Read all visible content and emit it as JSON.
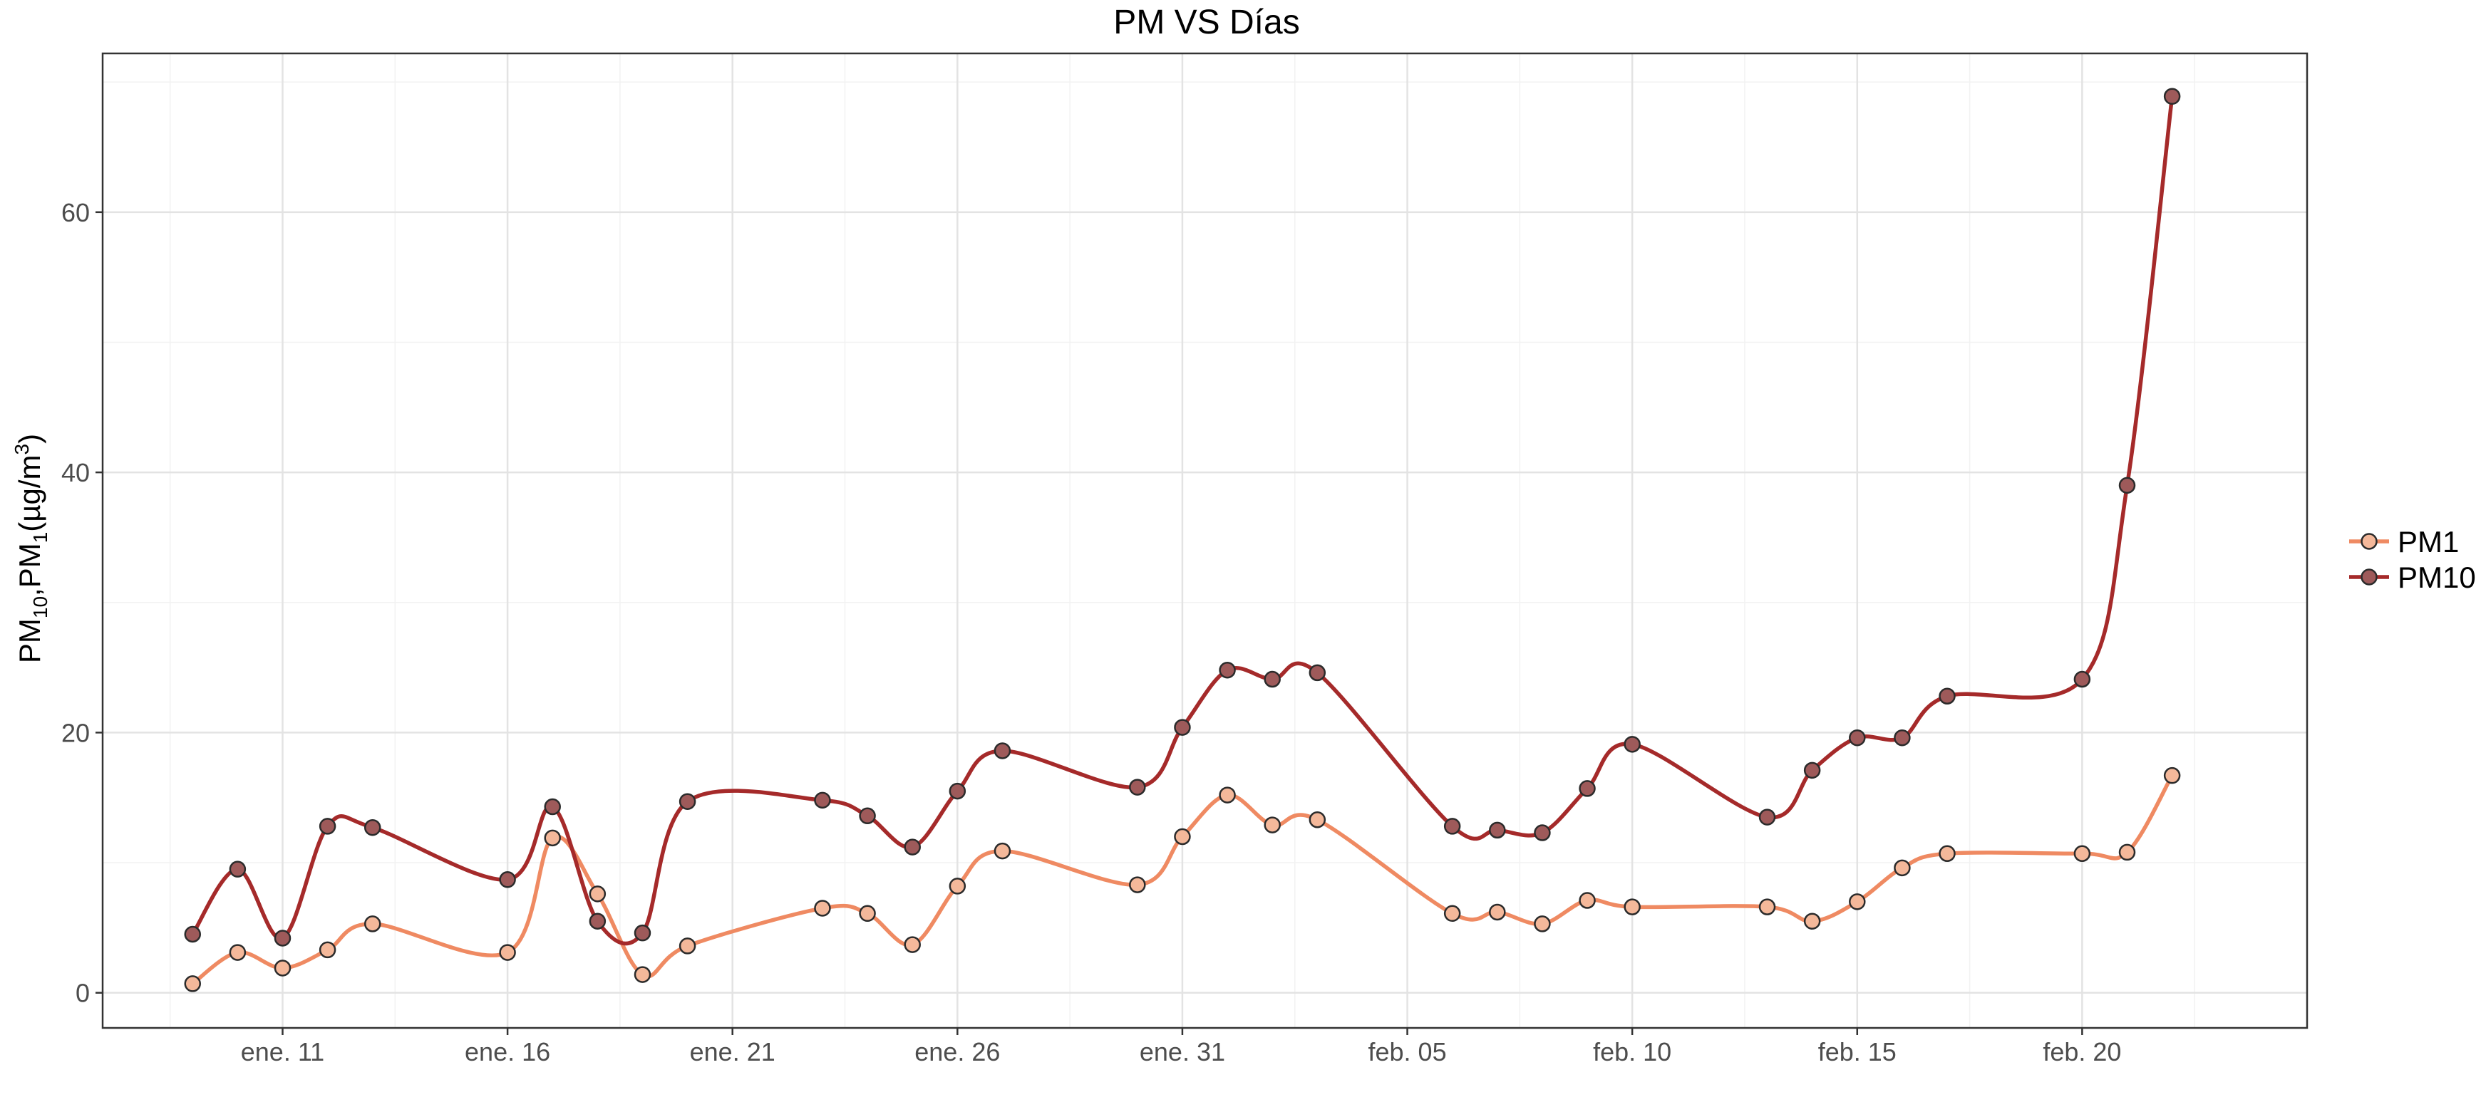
{
  "chart_data": {
    "type": "line",
    "title": "PM VS Días",
    "xlabel": "",
    "ylabel": "PM10,PM1(µg/m3)",
    "ylabel_parts": {
      "a": "PM",
      "a_sub": "10",
      "sep": ",PM",
      "b_sub": "1",
      "unit": "(µg/m",
      "unit_sup": "3",
      "close": ")"
    },
    "x_ticks": [
      "ene. 11",
      "ene. 16",
      "ene. 21",
      "ene. 26",
      "ene. 31",
      "feb. 05",
      "feb. 10",
      "feb. 15",
      "feb. 20"
    ],
    "x_range": [
      "2023-01-07",
      "2023-02-25"
    ],
    "ylim": [
      -2.7,
      72.2
    ],
    "y_ticks": [
      0,
      20,
      40,
      60
    ],
    "grid": true,
    "legend_position": "right",
    "series": [
      {
        "name": "PM1",
        "color": "#ef8a62",
        "point_fill": "#f4b89a",
        "points": [
          [
            "2023-01-09",
            0.7
          ],
          [
            "2023-01-10",
            3.1
          ],
          [
            "2023-01-11",
            1.9
          ],
          [
            "2023-01-12",
            3.3
          ],
          [
            "2023-01-13",
            5.3
          ],
          [
            "2023-01-16",
            3.1
          ],
          [
            "2023-01-17",
            11.9
          ],
          [
            "2023-01-18",
            7.6
          ],
          [
            "2023-01-19",
            1.4
          ],
          [
            "2023-01-20",
            3.6
          ],
          [
            "2023-01-23",
            6.5
          ],
          [
            "2023-01-24",
            6.1
          ],
          [
            "2023-01-25",
            3.7
          ],
          [
            "2023-01-26",
            8.2
          ],
          [
            "2023-01-27",
            10.9
          ],
          [
            "2023-01-30",
            8.3
          ],
          [
            "2023-01-31",
            12.0
          ],
          [
            "2023-02-01",
            15.2
          ],
          [
            "2023-02-02",
            12.9
          ],
          [
            "2023-02-03",
            13.3
          ],
          [
            "2023-02-06",
            6.1
          ],
          [
            "2023-02-07",
            6.2
          ],
          [
            "2023-02-08",
            5.3
          ],
          [
            "2023-02-09",
            7.1
          ],
          [
            "2023-02-10",
            6.6
          ],
          [
            "2023-02-13",
            6.6
          ],
          [
            "2023-02-14",
            5.5
          ],
          [
            "2023-02-15",
            7.0
          ],
          [
            "2023-02-16",
            9.6
          ],
          [
            "2023-02-17",
            10.7
          ],
          [
            "2023-02-20",
            10.7
          ],
          [
            "2023-02-21",
            10.8
          ],
          [
            "2023-02-22",
            16.7
          ]
        ]
      },
      {
        "name": "PM10",
        "color": "#a52a2a",
        "point_fill": "#9e5a5a",
        "points": [
          [
            "2023-01-09",
            4.5
          ],
          [
            "2023-01-10",
            9.5
          ],
          [
            "2023-01-11",
            4.2
          ],
          [
            "2023-01-12",
            12.8
          ],
          [
            "2023-01-13",
            12.7
          ],
          [
            "2023-01-16",
            8.7
          ],
          [
            "2023-01-17",
            14.3
          ],
          [
            "2023-01-18",
            5.5
          ],
          [
            "2023-01-19",
            4.6
          ],
          [
            "2023-01-20",
            14.7
          ],
          [
            "2023-01-23",
            14.8
          ],
          [
            "2023-01-24",
            13.6
          ],
          [
            "2023-01-25",
            11.2
          ],
          [
            "2023-01-26",
            15.5
          ],
          [
            "2023-01-27",
            18.6
          ],
          [
            "2023-01-30",
            15.8
          ],
          [
            "2023-01-31",
            20.4
          ],
          [
            "2023-02-01",
            24.8
          ],
          [
            "2023-02-02",
            24.1
          ],
          [
            "2023-02-03",
            24.6
          ],
          [
            "2023-02-06",
            12.8
          ],
          [
            "2023-02-07",
            12.5
          ],
          [
            "2023-02-08",
            12.3
          ],
          [
            "2023-02-09",
            15.7
          ],
          [
            "2023-02-10",
            19.1
          ],
          [
            "2023-02-13",
            13.5
          ],
          [
            "2023-02-14",
            17.1
          ],
          [
            "2023-02-15",
            19.6
          ],
          [
            "2023-02-16",
            19.6
          ],
          [
            "2023-02-17",
            22.8
          ],
          [
            "2023-02-20",
            24.1
          ],
          [
            "2023-02-21",
            39.0
          ],
          [
            "2023-02-22",
            68.9
          ]
        ]
      }
    ]
  }
}
